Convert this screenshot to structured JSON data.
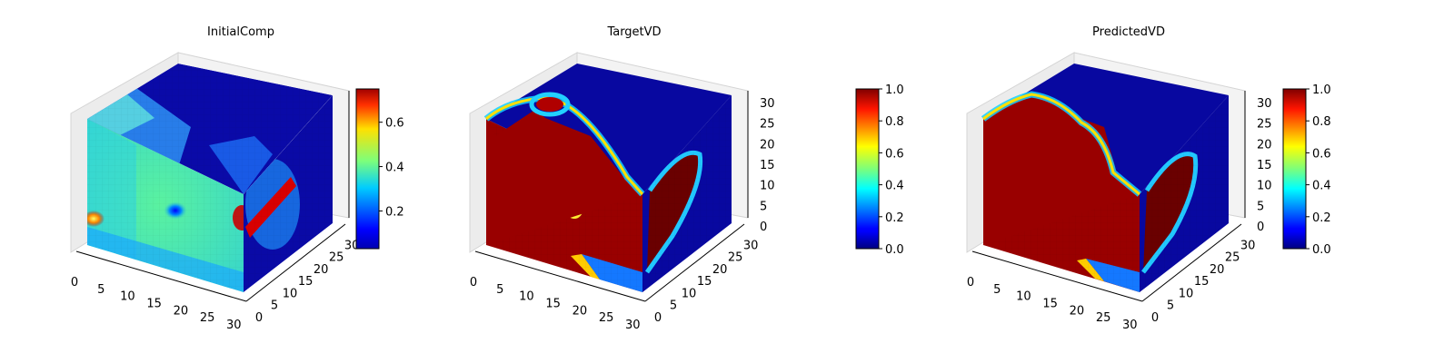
{
  "figure": {
    "panels": [
      {
        "title": "InitialComp"
      },
      {
        "title": "TargetVD"
      },
      {
        "title": "PredictedVD"
      }
    ]
  },
  "chart_data": [
    {
      "type": "heatmap",
      "subtype": "3d-voxel-cube",
      "title": "InitialComp",
      "colormap": "jet",
      "x_ticks": [
        0,
        5,
        10,
        15,
        20,
        25,
        30
      ],
      "y_ticks": [
        0,
        5,
        10,
        15,
        20,
        25,
        30
      ],
      "z_ticks": [],
      "grid": true,
      "colorbar": {
        "min": 0.03,
        "max": 0.75,
        "ticks": [
          0.2,
          0.4,
          0.6
        ],
        "tick_labels": [
          "0.2",
          "0.4",
          "0.6"
        ]
      }
    },
    {
      "type": "heatmap",
      "subtype": "3d-voxel-cube",
      "title": "TargetVD",
      "colormap": "jet",
      "x_ticks": [
        0,
        5,
        10,
        15,
        20,
        25,
        30
      ],
      "y_ticks": [
        0,
        5,
        10,
        15,
        20,
        25,
        30
      ],
      "z_ticks": [
        0,
        5,
        10,
        15,
        20,
        25,
        30
      ],
      "grid": true,
      "colorbar": {
        "min": 0.0,
        "max": 1.0,
        "ticks": [
          0.0,
          0.2,
          0.4,
          0.6,
          0.8,
          1.0
        ],
        "tick_labels": [
          "0.0",
          "0.2",
          "0.4",
          "0.6",
          "0.8",
          "1.0"
        ]
      }
    },
    {
      "type": "heatmap",
      "subtype": "3d-voxel-cube",
      "title": "PredictedVD",
      "colormap": "jet",
      "x_ticks": [
        0,
        5,
        10,
        15,
        20,
        25,
        30
      ],
      "y_ticks": [
        0,
        5,
        10,
        15,
        20,
        25,
        30
      ],
      "z_ticks": [
        0,
        5,
        10,
        15,
        20,
        25,
        30
      ],
      "grid": true,
      "colorbar": {
        "min": 0.0,
        "max": 1.0,
        "ticks": [
          0.0,
          0.2,
          0.4,
          0.6,
          0.8,
          1.0
        ],
        "tick_labels": [
          "0.0",
          "0.2",
          "0.4",
          "0.6",
          "0.8",
          "1.0"
        ]
      }
    }
  ]
}
